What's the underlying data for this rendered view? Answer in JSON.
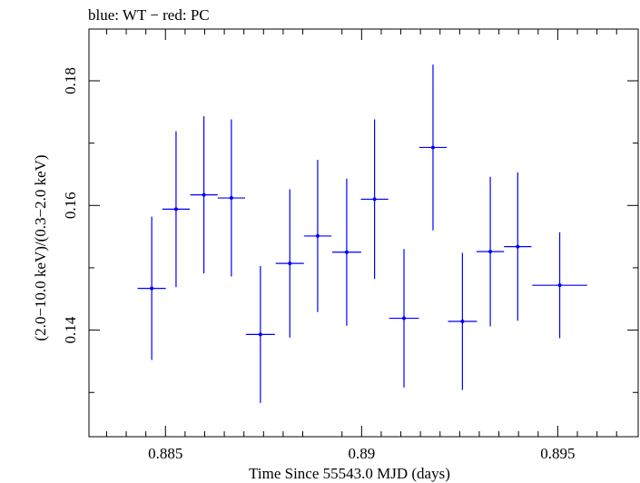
{
  "chart_data": {
    "type": "scatter",
    "title": "blue: WT − red: PC",
    "xlabel": "Time Since 55543.0 MJD (days)",
    "ylabel": "(2.0−10.0 keV)/(0.3−2.0 keV)",
    "xlim": [
      0.88305,
      0.89705
    ],
    "ylim": [
      0.1229,
      0.1883
    ],
    "x_ticks": [
      {
        "value": 0.885,
        "label": "0.885"
      },
      {
        "value": 0.89,
        "label": "0.89"
      },
      {
        "value": 0.895,
        "label": "0.895"
      }
    ],
    "x_minor_ticks": [
      0.8835,
      0.884,
      0.8845,
      0.8855,
      0.886,
      0.8865,
      0.887,
      0.8875,
      0.888,
      0.8885,
      0.8895,
      0.8905,
      0.891,
      0.8915,
      0.892,
      0.8925,
      0.893,
      0.8935,
      0.894,
      0.8945,
      0.8955,
      0.896,
      0.8965
    ],
    "y_ticks": [
      {
        "value": 0.14,
        "label": "0.14"
      },
      {
        "value": 0.16,
        "label": "0.16"
      },
      {
        "value": 0.18,
        "label": "0.18"
      }
    ],
    "y_minor_ticks": [
      0.13,
      0.15,
      0.17
    ],
    "color": "#0000ff",
    "series": [
      {
        "points": [
          {
            "x": 0.88465,
            "y": 0.1467,
            "xerr": 0.00036,
            "yerr": 0.0115
          },
          {
            "x": 0.88527,
            "y": 0.1594,
            "xerr": 0.00035,
            "yerr": 0.0125
          },
          {
            "x": 0.88598,
            "y": 0.1617,
            "xerr": 0.00035,
            "yerr": 0.0126
          },
          {
            "x": 0.88668,
            "y": 0.1612,
            "xerr": 0.00035,
            "yerr": 0.0126
          },
          {
            "x": 0.88742,
            "y": 0.1393,
            "xerr": 0.00037,
            "yerr": 0.011
          },
          {
            "x": 0.88817,
            "y": 0.1507,
            "xerr": 0.00036,
            "yerr": 0.0119
          },
          {
            "x": 0.88888,
            "y": 0.1551,
            "xerr": 0.00035,
            "yerr": 0.0122
          },
          {
            "x": 0.88962,
            "y": 0.1525,
            "xerr": 0.00037,
            "yerr": 0.0118
          },
          {
            "x": 0.89033,
            "y": 0.161,
            "xerr": 0.00035,
            "yerr": 0.0128
          },
          {
            "x": 0.89108,
            "y": 0.1419,
            "xerr": 0.00038,
            "yerr": 0.0111
          },
          {
            "x": 0.89182,
            "y": 0.1693,
            "xerr": 0.00035,
            "yerr": 0.0133
          },
          {
            "x": 0.89257,
            "y": 0.1414,
            "xerr": 0.00037,
            "yerr": 0.011
          },
          {
            "x": 0.89328,
            "y": 0.1526,
            "xerr": 0.00035,
            "yerr": 0.012
          },
          {
            "x": 0.89398,
            "y": 0.1534,
            "xerr": 0.00035,
            "yerr": 0.0119
          },
          {
            "x": 0.89505,
            "y": 0.1472,
            "xerr": 0.0007,
            "yerr": 0.0085
          }
        ]
      }
    ]
  }
}
